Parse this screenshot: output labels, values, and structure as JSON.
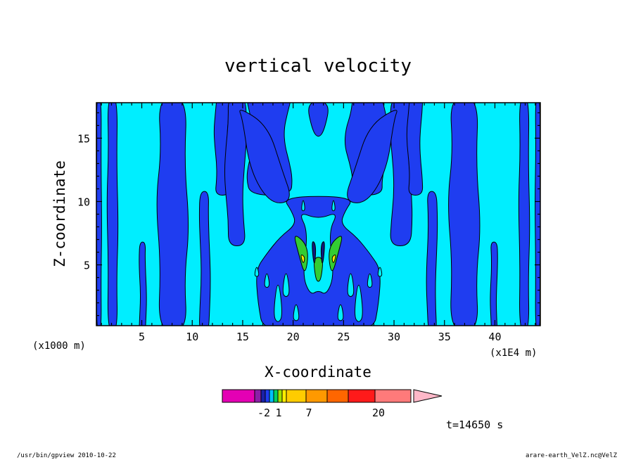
{
  "chart_data": {
    "type": "heatmap",
    "title": "vertical velocity",
    "xlabel": "X-coordinate",
    "ylabel": "Z-coordinate",
    "x_unit_left": "(x1000 m)",
    "x_unit_right": "(x1E4 m)",
    "xlim": [
      0.5,
      44.5
    ],
    "ylim": [
      0.2,
      17.8
    ],
    "x_ticks": [
      5,
      10,
      15,
      20,
      25,
      30,
      35,
      40
    ],
    "y_ticks": [
      5,
      10,
      15
    ],
    "x_minor_step": 1,
    "y_minor_step": 1,
    "x_center": 22.5,
    "time_label": "t=14650 s",
    "colors": {
      "background_field": "#00eeff",
      "negative_field": "#1f3df0",
      "contour_line": "#000000",
      "positive_small": "#33cc33",
      "positive_mid": "#ffee00",
      "deep_negative": "#101a80"
    },
    "field_regions": {
      "negative_columns": [
        {
          "x": [
            0.5,
            1.0
          ],
          "z": [
            0.2,
            17.8
          ]
        },
        {
          "x": [
            1.6,
            2.6
          ],
          "z": [
            0.2,
            17.8
          ]
        },
        {
          "x": [
            4.8,
            5.4
          ],
          "z": [
            0.2,
            6.8
          ]
        },
        {
          "x": [
            6.6,
            9.5
          ],
          "z": [
            0.2,
            17.8
          ]
        },
        {
          "x": [
            10.8,
            11.7
          ],
          "z": [
            0.2,
            10.8
          ]
        },
        {
          "x": [
            12.3,
            13.6
          ],
          "z": [
            10.5,
            17.8
          ]
        },
        {
          "x": [
            13.4,
            15.2
          ],
          "z": [
            6.5,
            17.8
          ]
        },
        {
          "x": [
            15.8,
            19.5
          ],
          "z": [
            10.5,
            17.8
          ]
        },
        {
          "x": [
            25.5,
            29.2
          ],
          "z": [
            10.5,
            17.8
          ]
        },
        {
          "x": [
            29.8,
            31.6
          ],
          "z": [
            6.5,
            17.8
          ]
        },
        {
          "x": [
            31.4,
            32.7
          ],
          "z": [
            10.5,
            17.8
          ]
        },
        {
          "x": [
            33.3,
            34.2
          ],
          "z": [
            0.2,
            10.8
          ]
        },
        {
          "x": [
            35.5,
            38.4
          ],
          "z": [
            0.2,
            17.8
          ]
        },
        {
          "x": [
            39.6,
            40.2
          ],
          "z": [
            0.2,
            6.8
          ]
        },
        {
          "x": [
            42.4,
            43.4
          ],
          "z": [
            0.2,
            17.8
          ]
        },
        {
          "x": [
            44.0,
            44.5
          ],
          "z": [
            0.2,
            17.8
          ]
        }
      ],
      "central_negative_core": {
        "x": [
          16.5,
          28.5
        ],
        "z": [
          0.2,
          8.5
        ]
      },
      "central_positive_core": {
        "x": [
          20.5,
          24.5
        ],
        "z": [
          2.2,
          8.0
        ]
      }
    }
  },
  "colorbar": {
    "tick_labels": [
      "-2",
      "1",
      "7",
      "20"
    ],
    "tick_values": [
      -2,
      1,
      7,
      20
    ],
    "levels": [
      -20,
      -7,
      -3,
      -2,
      -1,
      0,
      1,
      2,
      3,
      7,
      10,
      15,
      20,
      30
    ],
    "colors": [
      "#e400b4",
      "#8b1fa8",
      "#1a20a8",
      "#1f3df0",
      "#00c0ff",
      "#00d060",
      "#a0e000",
      "#ffee00",
      "#ffcc00",
      "#ff9900",
      "#ff6600",
      "#ff1a1a",
      "#ff7a7a",
      "#ffb8c8"
    ]
  },
  "footer": {
    "left": "/usr/bin/gpview   2010-10-22",
    "right": "arare-earth_VelZ.nc@VelZ"
  }
}
